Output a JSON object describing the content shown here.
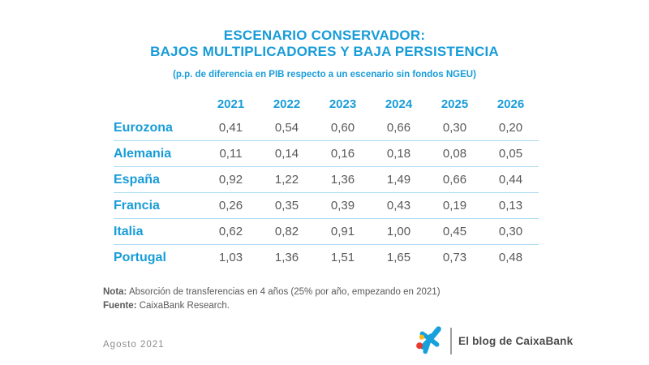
{
  "colors": {
    "brand_blue": "#189cd8",
    "text_gray": "#58595b",
    "date_gray": "#8c8c8e",
    "separator_blue": "#abdbf2",
    "divider_gray": "#9d9d9d",
    "logo_text_gray": "#4a4a4c",
    "logo_star_blue": "#18a0dc",
    "logo_red": "#e83b2f",
    "logo_yellow": "#fdb913"
  },
  "title": {
    "line1": "ESCENARIO CONSERVADOR:",
    "line2": "BAJOS MULTIPLICADORES Y BAJA PERSISTENCIA"
  },
  "subtitle": "(p.p. de diferencia en PIB respecto a un escenario sin fondos NGEU)",
  "chart_data": {
    "type": "table",
    "columns": [
      "2021",
      "2022",
      "2023",
      "2024",
      "2025",
      "2026"
    ],
    "rows": [
      {
        "label": "Eurozona",
        "values": [
          "0,41",
          "0,54",
          "0,60",
          "0,66",
          "0,30",
          "0,20"
        ]
      },
      {
        "label": "Alemania",
        "values": [
          "0,11",
          "0,14",
          "0,16",
          "0,18",
          "0,08",
          "0,05"
        ]
      },
      {
        "label": "España",
        "values": [
          "0,92",
          "1,22",
          "1,36",
          "1,49",
          "0,66",
          "0,44"
        ]
      },
      {
        "label": "Francia",
        "values": [
          "0,26",
          "0,35",
          "0,39",
          "0,43",
          "0,19",
          "0,13"
        ]
      },
      {
        "label": "Italia",
        "values": [
          "0,62",
          "0,82",
          "0,91",
          "1,00",
          "0,45",
          "0,30"
        ]
      },
      {
        "label": "Portugal",
        "values": [
          "1,03",
          "1,36",
          "1,51",
          "1,65",
          "0,73",
          "0,48"
        ]
      }
    ],
    "title": "ESCENARIO CONSERVADOR: BAJOS MULTIPLICADORES Y BAJA PERSISTENCIA",
    "subtitle": "(p.p. de diferencia en PIB respecto a un escenario sin fondos NGEU)"
  },
  "notes": {
    "nota_label": "Nota:",
    "nota_text": " Absorción de transferencias en 4 años (25% por año, empezando en 2021)",
    "fuente_label": "Fuente:",
    "fuente_text": " CaixaBank Research."
  },
  "footer": {
    "date": "Agosto 2021",
    "logo_text": "El blog de CaixaBank"
  }
}
